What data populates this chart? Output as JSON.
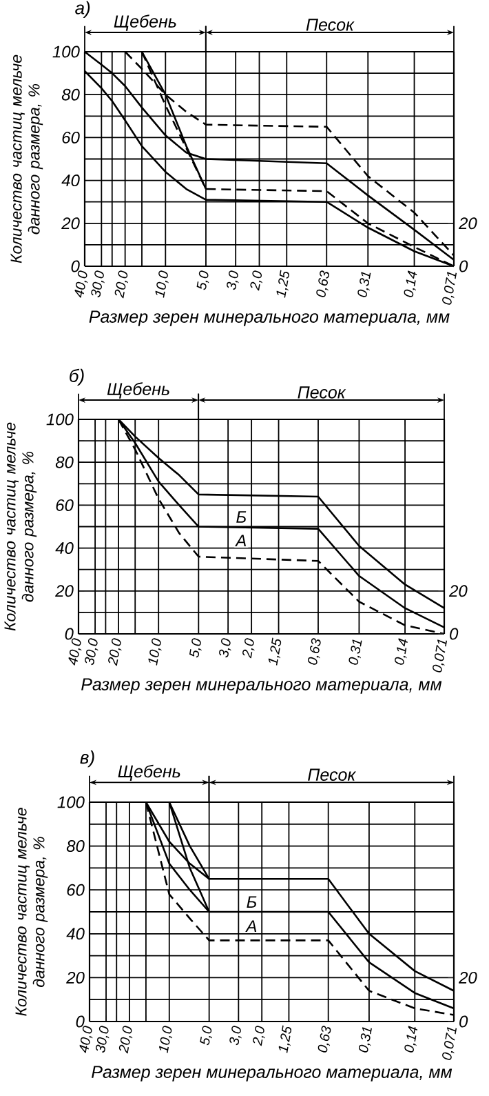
{
  "chart_data": [
    {
      "type": "line",
      "title": "а)",
      "ylabel": "Количество частиц мельче данного размера, %",
      "xlabel": "Размер зерен минерального материала, мм",
      "log": "x",
      "grid": true,
      "marker": "none",
      "xlim": [
        40,
        0.071
      ],
      "xticks": [
        {
          "value": 40,
          "label": "40,0"
        },
        {
          "value": 30,
          "label": "30,0"
        },
        {
          "value": 25,
          "label": null
        },
        {
          "value": 20,
          "label": "20,0"
        },
        {
          "value": 15,
          "label": null
        },
        {
          "value": 10,
          "label": "10,0"
        },
        {
          "value": 5,
          "label": "5,0"
        },
        {
          "value": 3,
          "label": "3,0"
        },
        {
          "value": 2,
          "label": "2,0"
        },
        {
          "value": 1.25,
          "label": "1,25"
        },
        {
          "value": 0.63,
          "label": "0,63"
        },
        {
          "value": 0.31,
          "label": "0,31"
        },
        {
          "value": 0.14,
          "label": "0,14"
        },
        {
          "value": 0.071,
          "label": "0,071"
        }
      ],
      "ylim": [
        0,
        100
      ],
      "yticks": [
        0,
        {
          "value": 10,
          "label": null
        },
        20,
        {
          "value": 30,
          "label": null
        },
        40,
        {
          "value": 50,
          "label": null
        },
        60,
        {
          "value": 70,
          "label": null
        },
        80,
        {
          "value": 90,
          "label": null
        },
        100
      ],
      "y2lim": [
        0,
        100
      ],
      "y2ticks": [
        0,
        20
      ],
      "annotations": [
        "Щебень",
        "Песок"
      ],
      "series": [
        {
          "color": "#000000",
          "line_style": "solid",
          "x": [
            40,
            30,
            25,
            20,
            15,
            10,
            7,
            5,
            0.63,
            0.31,
            0.14,
            0.071
          ],
          "values": [
            91,
            83,
            77,
            68,
            56,
            44,
            36,
            31,
            30,
            18,
            7,
            0
          ]
        },
        {
          "color": "#000000",
          "line_style": "solid",
          "x": [
            40,
            30,
            25,
            20,
            15,
            10,
            7,
            5,
            0.63,
            0.31,
            0.14,
            0.071
          ],
          "values": [
            100,
            94,
            90,
            84,
            74,
            61,
            53,
            50,
            48,
            33,
            17,
            3
          ]
        },
        {
          "color": "#000000",
          "line_style": "solid",
          "x": [
            15,
            10,
            7,
            5
          ],
          "values": [
            100,
            80,
            56,
            36
          ]
        },
        {
          "color": "#000000",
          "line_style": "dashed",
          "x": [
            15,
            10,
            7,
            5,
            0.63,
            0.31,
            0.14,
            0.071
          ],
          "values": [
            100,
            75,
            55,
            36,
            35,
            20,
            9,
            0
          ]
        },
        {
          "color": "#000000",
          "line_style": "dashed",
          "x": [
            20,
            15,
            10,
            7,
            5,
            0.63,
            0.31,
            0.14,
            0.071
          ],
          "values": [
            100,
            92,
            80,
            72,
            66,
            65,
            42,
            25,
            5
          ]
        }
      ]
    },
    {
      "type": "line",
      "title": "б)",
      "ylabel": "Количество частиц мельче данного размера, %",
      "xlabel": "Размер зерен минерального материала, мм",
      "log": "x",
      "grid": true,
      "marker": "none",
      "xlim": [
        40,
        0.071
      ],
      "xticks": [
        {
          "value": 40,
          "label": "40,0"
        },
        {
          "value": 30,
          "label": "30,0"
        },
        {
          "value": 25,
          "label": null
        },
        {
          "value": 20,
          "label": "20,0"
        },
        {
          "value": 15,
          "label": null
        },
        {
          "value": 10,
          "label": "10,0"
        },
        {
          "value": 5,
          "label": "5,0"
        },
        {
          "value": 3,
          "label": "3,0"
        },
        {
          "value": 2,
          "label": "2,0"
        },
        {
          "value": 1.25,
          "label": "1,25"
        },
        {
          "value": 0.63,
          "label": "0,63"
        },
        {
          "value": 0.31,
          "label": "0,31"
        },
        {
          "value": 0.14,
          "label": "0,14"
        },
        {
          "value": 0.071,
          "label": "0,071"
        }
      ],
      "ylim": [
        0,
        100
      ],
      "yticks": [
        0,
        {
          "value": 10,
          "label": null
        },
        20,
        {
          "value": 30,
          "label": null
        },
        40,
        {
          "value": 50,
          "label": null
        },
        60,
        {
          "value": 70,
          "label": null
        },
        80,
        {
          "value": 90,
          "label": null
        },
        100
      ],
      "y2lim": [
        0,
        100
      ],
      "y2ticks": [
        0,
        20
      ],
      "annotations": [
        "Щебень",
        "Песок",
        "Б",
        "А"
      ],
      "series": [
        {
          "color": "#000000",
          "line_style": "solid",
          "x": [
            20,
            15,
            10,
            7,
            5,
            0.63,
            0.31,
            0.14,
            0.071
          ],
          "values": [
            100,
            92,
            82,
            74,
            65,
            64,
            41,
            23,
            12
          ]
        },
        {
          "color": "#000000",
          "line_style": "solid",
          "x": [
            20,
            15,
            10,
            7,
            5,
            0.63,
            0.31,
            0.14,
            0.071
          ],
          "values": [
            100,
            89,
            71,
            60,
            50,
            49,
            27,
            12,
            3
          ]
        },
        {
          "color": "#000000",
          "line_style": "dashed",
          "x": [
            20,
            15,
            10,
            7,
            5,
            0.63,
            0.31,
            0.14,
            0.071
          ],
          "values": [
            100,
            86,
            63,
            47,
            36,
            34,
            15,
            4,
            0
          ]
        }
      ]
    },
    {
      "type": "line",
      "title": "в)",
      "ylabel": "Количество частиц мельче данного размера, %",
      "xlabel": "Размер зерен минерального материала, мм",
      "log": "x",
      "grid": true,
      "marker": "none",
      "xlim": [
        40,
        0.071
      ],
      "xticks": [
        {
          "value": 40,
          "label": "40,0"
        },
        {
          "value": 30,
          "label": "30,0"
        },
        {
          "value": 25,
          "label": null
        },
        {
          "value": 20,
          "label": "20,0"
        },
        {
          "value": 15,
          "label": null
        },
        {
          "value": 10,
          "label": "10,0"
        },
        {
          "value": 5,
          "label": "5,0"
        },
        {
          "value": 3,
          "label": "3,0"
        },
        {
          "value": 2,
          "label": "2,0"
        },
        {
          "value": 1.25,
          "label": "1,25"
        },
        {
          "value": 0.63,
          "label": "0,63"
        },
        {
          "value": 0.31,
          "label": "0,31"
        },
        {
          "value": 0.14,
          "label": "0,14"
        },
        {
          "value": 0.071,
          "label": "0,071"
        }
      ],
      "ylim": [
        0,
        100
      ],
      "yticks": [
        0,
        {
          "value": 10,
          "label": null
        },
        20,
        {
          "value": 30,
          "label": null
        },
        40,
        {
          "value": 50,
          "label": null
        },
        60,
        {
          "value": 70,
          "label": null
        },
        80,
        {
          "value": 90,
          "label": null
        },
        100
      ],
      "y2lim": [
        0,
        100
      ],
      "y2ticks": [
        0,
        20
      ],
      "annotations": [
        "Щебень",
        "Песок",
        "Б",
        "А"
      ],
      "series": [
        {
          "color": "#000000",
          "line_style": "solid",
          "x": [
            10,
            7,
            5,
            0.63,
            0.31,
            0.14,
            0.071
          ],
          "values": [
            100,
            80,
            65,
            65,
            40,
            23,
            14
          ]
        },
        {
          "color": "#000000",
          "line_style": "solid",
          "x": [
            15,
            10,
            7,
            5
          ],
          "values": [
            100,
            82,
            72,
            65
          ]
        },
        {
          "color": "#000000",
          "line_style": "solid",
          "x": [
            15,
            10,
            7,
            5,
            0.63,
            0.31,
            0.14,
            0.071
          ],
          "values": [
            100,
            72,
            60,
            50,
            50,
            27,
            13,
            6
          ]
        },
        {
          "color": "#000000",
          "line_style": "solid",
          "x": [
            10,
            7,
            5
          ],
          "values": [
            100,
            70,
            50
          ]
        },
        {
          "color": "#000000",
          "line_style": "dashed",
          "x": [
            15,
            10,
            7,
            5,
            0.63,
            0.31,
            0.14,
            0.071
          ],
          "values": [
            100,
            58,
            47,
            37,
            37,
            14,
            6,
            3
          ]
        }
      ]
    }
  ]
}
